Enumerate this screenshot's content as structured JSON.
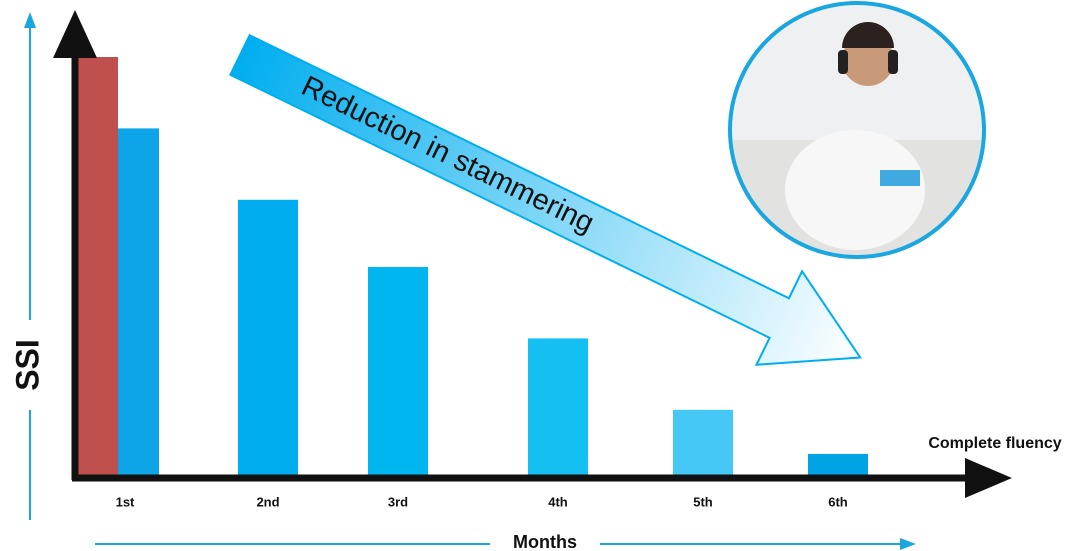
{
  "chart_data": {
    "type": "bar",
    "annotation": "Reduction in stammering",
    "y_label": "SSI",
    "x_label": "Months",
    "end_label": "Complete fluency",
    "categories": [
      "1st",
      "2nd",
      "3rd",
      "4th",
      "5th",
      "6th"
    ],
    "series": [
      {
        "color": "#c0504d",
        "values": [
          100,
          null,
          null,
          null,
          null,
          null
        ]
      },
      {
        "colors": [
          "#0ea5e8",
          "#00aeef",
          "#00b6f0",
          "#14bff2",
          "#45c8f5",
          "#00a3e3"
        ],
        "values": [
          83,
          66,
          50,
          33,
          16,
          5.5
        ]
      }
    ],
    "ylim": [
      0,
      100
    ]
  }
}
